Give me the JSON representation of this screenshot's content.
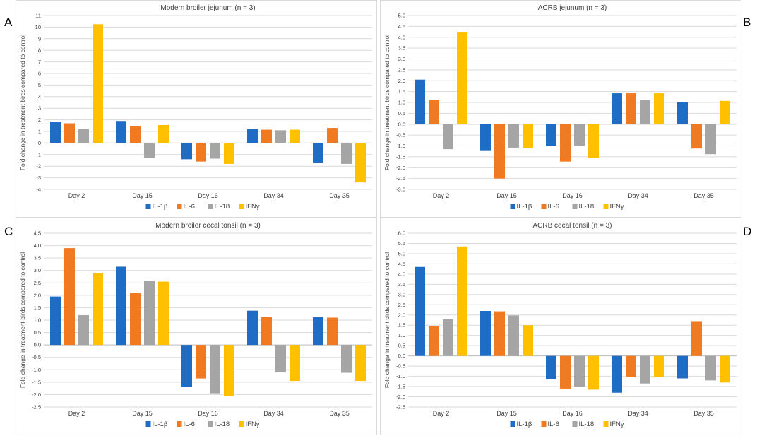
{
  "panel_letters": [
    "A",
    "B",
    "C",
    "D"
  ],
  "chart_data": [
    {
      "panel": "A",
      "type": "bar",
      "title": "Modern broiler jejunum (n = 3)",
      "ylabel": "Fold change in treatment birds compared to control",
      "xlabel": "",
      "categories": [
        "Day 2",
        "Day 15",
        "Day 16",
        "Day 34",
        "Day 35"
      ],
      "ylim": [
        -4,
        11
      ],
      "ystep": 1,
      "decimals": 0,
      "series": [
        {
          "name": "IL-1β",
          "color": "#1f6cc4",
          "values": [
            1.85,
            1.9,
            -1.4,
            1.2,
            -1.7
          ]
        },
        {
          "name": "IL-6",
          "color": "#f07a22",
          "values": [
            1.7,
            1.45,
            -1.6,
            1.15,
            1.3
          ]
        },
        {
          "name": "IL-18",
          "color": "#a5a5a5",
          "values": [
            1.2,
            -1.3,
            -1.35,
            1.1,
            -1.8
          ]
        },
        {
          "name": "IFNγ",
          "color": "#ffc000",
          "values": [
            10.25,
            1.55,
            -1.8,
            1.15,
            -3.4
          ]
        }
      ]
    },
    {
      "panel": "B",
      "type": "bar",
      "title": "ACRB jejunum (n = 3)",
      "ylabel": "Fold change in treatment birds compared to control",
      "xlabel": "",
      "categories": [
        "Day 2",
        "Day 15",
        "Day 16",
        "Day 34",
        "Day 35"
      ],
      "ylim": [
        -3.0,
        5.0
      ],
      "ystep": 0.5,
      "decimals": 1,
      "series": [
        {
          "name": "IL-1β",
          "color": "#1f6cc4",
          "values": [
            2.05,
            -1.2,
            -1.0,
            1.42,
            1.0
          ]
        },
        {
          "name": "IL-6",
          "color": "#f07a22",
          "values": [
            1.1,
            -2.5,
            -1.72,
            1.42,
            -1.12
          ]
        },
        {
          "name": "IL-18",
          "color": "#a5a5a5",
          "values": [
            -1.15,
            -1.08,
            -1.0,
            1.1,
            -1.38
          ]
        },
        {
          "name": "IFNγ",
          "color": "#ffc000",
          "values": [
            4.25,
            -1.1,
            -1.55,
            1.42,
            1.07
          ]
        }
      ]
    },
    {
      "panel": "C",
      "type": "bar",
      "title": "Modern broiler cecal tonsil (n = 3)",
      "ylabel": "Fold change in treatment birds compared to control",
      "xlabel": "",
      "categories": [
        "Day 2",
        "Day 15",
        "Day 16",
        "Day 34",
        "Day 35"
      ],
      "ylim": [
        -2.5,
        4.5
      ],
      "ystep": 0.5,
      "decimals": 1,
      "series": [
        {
          "name": "IL-1β",
          "color": "#1f6cc4",
          "values": [
            1.95,
            3.15,
            -1.7,
            1.38,
            1.12
          ]
        },
        {
          "name": "IL-6",
          "color": "#f07a22",
          "values": [
            3.9,
            2.1,
            -1.35,
            1.12,
            1.1
          ]
        },
        {
          "name": "IL-18",
          "color": "#a5a5a5",
          "values": [
            1.2,
            2.58,
            -1.95,
            -1.1,
            -1.12
          ]
        },
        {
          "name": "IFNγ",
          "color": "#ffc000",
          "values": [
            2.9,
            2.55,
            -2.05,
            -1.45,
            -1.45
          ]
        }
      ]
    },
    {
      "panel": "D",
      "type": "bar",
      "title": "ACRB cecal tonsil (n = 3)",
      "ylabel": "Fold change in treatment birds compared to control",
      "xlabel": "",
      "categories": [
        "Day 2",
        "Day 15",
        "Day 16",
        "Day 34",
        "Day 35"
      ],
      "ylim": [
        -2.5,
        6.0
      ],
      "ystep": 0.5,
      "decimals": 1,
      "series": [
        {
          "name": "IL-1β",
          "color": "#1f6cc4",
          "values": [
            4.35,
            2.2,
            -1.15,
            -1.8,
            -1.1
          ]
        },
        {
          "name": "IL-6",
          "color": "#f07a22",
          "values": [
            1.45,
            2.18,
            -1.6,
            -1.05,
            1.7
          ]
        },
        {
          "name": "IL-18",
          "color": "#a5a5a5",
          "values": [
            1.8,
            1.98,
            -1.5,
            -1.35,
            -1.2
          ]
        },
        {
          "name": "IFNγ",
          "color": "#ffc000",
          "values": [
            5.35,
            1.5,
            -1.65,
            -1.05,
            -1.3
          ]
        }
      ]
    }
  ]
}
